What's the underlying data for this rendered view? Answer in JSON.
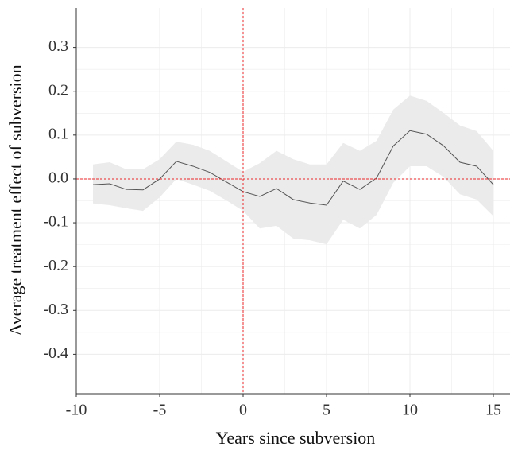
{
  "chart_data": {
    "type": "line",
    "xlabel": "Years since subversion",
    "ylabel": "Average treatment effect of subversion",
    "x": [
      -9,
      -8,
      -7,
      -6,
      -5,
      -4,
      -3,
      -2,
      -1,
      0,
      1,
      2,
      3,
      4,
      5,
      6,
      7,
      8,
      9,
      10,
      11,
      12,
      13,
      14,
      15
    ],
    "series": [
      {
        "color": "#555555",
        "band_color": "#ebebeb",
        "values": [
          -0.013,
          -0.011,
          -0.024,
          -0.025,
          0.0,
          0.04,
          0.029,
          0.015,
          -0.007,
          -0.029,
          -0.04,
          -0.022,
          -0.047,
          -0.055,
          -0.06,
          -0.005,
          -0.024,
          0.002,
          0.075,
          0.11,
          0.102,
          0.076,
          0.038,
          0.029,
          -0.013
        ],
        "upper": [
          0.033,
          0.038,
          0.022,
          0.022,
          0.045,
          0.085,
          0.078,
          0.064,
          0.04,
          0.016,
          0.036,
          0.064,
          0.045,
          0.033,
          0.033,
          0.082,
          0.064,
          0.087,
          0.158,
          0.19,
          0.178,
          0.151,
          0.122,
          0.109,
          0.064
        ],
        "lower": [
          -0.056,
          -0.06,
          -0.067,
          -0.073,
          -0.042,
          0.0,
          -0.013,
          -0.027,
          -0.049,
          -0.073,
          -0.113,
          -0.107,
          -0.136,
          -0.14,
          -0.149,
          -0.093,
          -0.113,
          -0.082,
          -0.009,
          0.029,
          0.029,
          0.005,
          -0.035,
          -0.047,
          -0.085
        ]
      }
    ],
    "xlim": [
      -10,
      16
    ],
    "ylim": [
      -0.49,
      0.39
    ],
    "xticks": [
      -10,
      -5,
      0,
      5,
      10,
      15
    ],
    "yticks": [
      -0.4,
      -0.3,
      -0.2,
      -0.1,
      {
        "value": 0,
        "label": "0.0"
      },
      0.1,
      0.2,
      0.3
    ],
    "grid": true,
    "vline": 0,
    "hline": 0,
    "ref_color": "#e8262a"
  }
}
